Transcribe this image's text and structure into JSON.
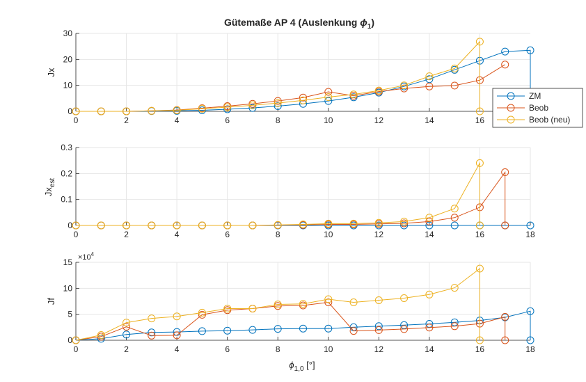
{
  "figure_title": "Gütemaße AP 4 (Auslenkung ",
  "title_symbol": "ϕ",
  "title_sub": "1",
  "title_close": ")",
  "colors": {
    "ZM": "#0072BD",
    "Beob": "#D95319",
    "Beob (neu)": "#EDB120",
    "axis": "#262626",
    "grid": "#e6e6e6"
  },
  "chart_data": [
    {
      "type": "line",
      "ylabel": "Jx",
      "xlim": [
        0,
        18
      ],
      "ylim": [
        0,
        30
      ],
      "xticks": [
        0,
        2,
        4,
        6,
        8,
        10,
        12,
        14,
        16
      ],
      "yticks": [
        0,
        10,
        20,
        30
      ],
      "grid": true,
      "legend": {
        "placement": "right",
        "entries": [
          "ZM",
          "Beob",
          "Beob (neu)"
        ]
      },
      "series": [
        {
          "name": "ZM",
          "x": [
            0,
            1,
            2,
            3,
            4,
            5,
            6,
            7,
            8,
            9,
            10,
            11,
            12,
            13,
            14,
            15,
            16,
            17,
            18
          ],
          "y": [
            0,
            0,
            0,
            0.1,
            0.2,
            0.4,
            0.8,
            1.3,
            2,
            2.9,
            4,
            5.4,
            7.2,
            9.6,
            12.4,
            16,
            19.5,
            23,
            23.5
          ],
          "drop": [
            18,
            0
          ]
        },
        {
          "name": "Beob",
          "x": [
            0,
            1,
            2,
            3,
            4,
            5,
            6,
            7,
            8,
            9,
            10,
            11,
            12,
            13,
            14,
            15,
            16,
            17
          ],
          "y": [
            0,
            0,
            0,
            0.2,
            0.5,
            1.2,
            2,
            2.9,
            4,
            5.3,
            7.5,
            6,
            7.6,
            8.8,
            9.6,
            9.9,
            12,
            18
          ]
        },
        {
          "name": "Beob (neu)",
          "x": [
            0,
            1,
            2,
            3,
            4,
            5,
            6,
            7,
            8,
            9,
            10,
            11,
            12,
            13,
            14,
            15,
            16
          ],
          "y": [
            0,
            0,
            0,
            0.2,
            0.4,
            1,
            1.6,
            2.3,
            3.2,
            4.2,
            5.5,
            6.5,
            8,
            10,
            13.5,
            16.5,
            26.8
          ],
          "drop": [
            16,
            0
          ]
        }
      ]
    },
    {
      "type": "line",
      "ylabel": "Jx",
      "ylabel_sub": "est",
      "xlim": [
        0,
        18
      ],
      "ylim": [
        0,
        0.3
      ],
      "xticks": [
        0,
        2,
        4,
        6,
        8,
        10,
        12,
        14,
        16,
        18
      ],
      "yticks": [
        0,
        0.1,
        0.2,
        0.3
      ],
      "grid": true,
      "series": [
        {
          "name": "ZM",
          "x": [
            0,
            1,
            2,
            3,
            4,
            5,
            6,
            7,
            8,
            9,
            10,
            11,
            12,
            13,
            14,
            15,
            16,
            17,
            18
          ],
          "y": [
            0,
            0,
            0,
            0,
            0,
            0,
            0,
            0,
            0,
            0,
            0,
            0,
            0,
            0,
            0,
            0,
            0,
            0,
            0
          ]
        },
        {
          "name": "Beob",
          "x": [
            0,
            1,
            2,
            3,
            4,
            5,
            6,
            7,
            8,
            9,
            10,
            11,
            12,
            13,
            14,
            15,
            16,
            17
          ],
          "y": [
            0,
            0,
            0,
            0,
            0,
            0,
            0,
            0,
            0.001,
            0.002,
            0.004,
            0.004,
            0.006,
            0.008,
            0.015,
            0.03,
            0.07,
            0.205
          ],
          "drop": [
            17,
            0
          ]
        },
        {
          "name": "Beob (neu)",
          "x": [
            0,
            1,
            2,
            3,
            4,
            5,
            6,
            7,
            8,
            9,
            10,
            11,
            12,
            13,
            14,
            15,
            16
          ],
          "y": [
            0,
            0,
            0,
            0,
            0,
            0,
            0,
            0,
            0.002,
            0.004,
            0.007,
            0.007,
            0.01,
            0.015,
            0.03,
            0.065,
            0.24
          ],
          "drop": [
            16,
            0
          ]
        }
      ]
    },
    {
      "type": "line",
      "ylabel": "Jf",
      "exponent_label": "×10",
      "exponent_power": "4",
      "xlabel_symbol": "ϕ",
      "xlabel_sub": "1,0",
      "xlabel_unit": " [°]",
      "xlim": [
        0,
        18
      ],
      "ylim": [
        0,
        150000
      ],
      "xticks": [
        0,
        2,
        4,
        6,
        8,
        10,
        12,
        14,
        16,
        18
      ],
      "yticks": [
        0,
        50000,
        100000,
        150000
      ],
      "ytick_labels": [
        "0",
        "5",
        "10",
        "15"
      ],
      "grid": true,
      "series": [
        {
          "name": "ZM",
          "x": [
            0,
            1,
            2,
            3,
            4,
            5,
            6,
            7,
            8,
            9,
            10,
            11,
            12,
            13,
            14,
            15,
            16,
            17,
            18
          ],
          "y": [
            0,
            3000,
            11000,
            15000,
            16000,
            17500,
            18500,
            20000,
            22000,
            22500,
            22500,
            25000,
            27000,
            29000,
            31500,
            34500,
            38000,
            44000,
            56000
          ],
          "drop": [
            18,
            0
          ]
        },
        {
          "name": "Beob",
          "x": [
            0,
            1,
            2,
            3,
            4,
            5,
            6,
            7,
            8,
            9,
            10,
            11,
            12,
            13,
            14,
            15,
            16,
            17
          ],
          "y": [
            0,
            7000,
            26000,
            9000,
            9500,
            49000,
            58000,
            61000,
            66000,
            67000,
            73000,
            18000,
            19500,
            21500,
            24500,
            27000,
            32000,
            45000
          ],
          "drop": [
            17,
            0
          ]
        },
        {
          "name": "Beob (neu)",
          "x": [
            0,
            1,
            2,
            3,
            4,
            5,
            6,
            7,
            8,
            9,
            10,
            11,
            12,
            13,
            14,
            15,
            16
          ],
          "y": [
            0,
            10000,
            34000,
            42000,
            46000,
            53000,
            61000,
            61000,
            69000,
            70000,
            79000,
            73000,
            77000,
            81000,
            88000,
            101000,
            138000
          ],
          "drop": [
            16,
            0
          ]
        }
      ]
    }
  ]
}
